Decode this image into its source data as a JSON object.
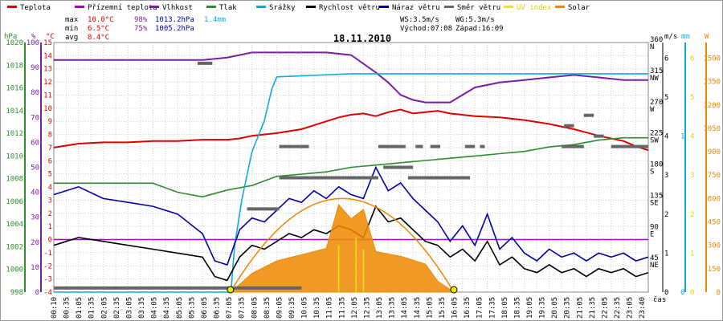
{
  "colors": {
    "teplota": "#dd0000",
    "prizemni": "#aa00cc",
    "vlhkost": "#7a1fa2",
    "tlak": "#2e8b2e",
    "srazky": "#11aadd",
    "rychlost": "#000000",
    "naraz": "#0000aa",
    "smer": "#666666",
    "uv": "#e8e800",
    "solar": "#ee8800",
    "grid": "#cccccc",
    "axis_hpa": "#2e8b2e",
    "axis_pct": "#7a1fa2",
    "axis_c": "#dd0000",
    "axis_ms": "#000000",
    "axis_mm": "#11aadd",
    "axis_w": "#ee8800"
  },
  "legend": [
    {
      "key": "teplota",
      "label": "Teplota"
    },
    {
      "key": "prizemni",
      "label": "Přízemní teplota"
    },
    {
      "key": "vlhkost",
      "label": "Vlhkost"
    },
    {
      "key": "tlak",
      "label": "Tlak"
    },
    {
      "key": "srazky",
      "label": "Srážky"
    },
    {
      "key": "rychlost",
      "label": "Rychlost větru"
    },
    {
      "key": "naraz",
      "label": "Náraz větru"
    },
    {
      "key": "smer",
      "label": "Směr větru"
    },
    {
      "key": "uv",
      "label": "UV index"
    },
    {
      "key": "solar",
      "label": "Solar"
    }
  ],
  "stats": {
    "max_label": "max",
    "max_temp": "10.0°C",
    "max_hum": "98%",
    "max_press": "1013.2hPa",
    "max_rain": "1.4mm",
    "min_label": "min",
    "min_temp": "6.5°C",
    "min_hum": "75%",
    "min_press": "1005.2hPa",
    "avg_label": "avg",
    "avg_temp": "8.4°C"
  },
  "wind_info": {
    "ws": "WS:3.5m/s",
    "wg": "WG:5.3m/s",
    "sunrise": "Východ:07:08",
    "sunset": "Západ:16:09"
  },
  "chart_data": {
    "type": "line",
    "title": "18.11.2010",
    "x_axis_label": "čas",
    "x_range_hours": [
      0,
      24
    ],
    "x_tick_labels": [
      "00:10",
      "00:35",
      "01:05",
      "01:35",
      "02:05",
      "02:35",
      "03:05",
      "03:35",
      "04:05",
      "04:35",
      "05:05",
      "05:35",
      "06:05",
      "06:35",
      "07:05",
      "07:35",
      "08:05",
      "08:35",
      "09:05",
      "09:35",
      "10:05",
      "10:35",
      "11:05",
      "11:35",
      "12:05",
      "12:35",
      "13:05",
      "13:35",
      "14:05",
      "14:35",
      "15:05",
      "15:35",
      "16:05",
      "16:35",
      "17:05",
      "17:35",
      "18:05",
      "18:35",
      "19:05",
      "19:35",
      "20:05",
      "20:35",
      "21:05",
      "21:35",
      "22:05",
      "22:35",
      "23:05",
      "23:40"
    ],
    "axes": {
      "hpa": {
        "unit": "hPa",
        "range": [
          998,
          1020
        ],
        "ticks": [
          998,
          1000,
          1002,
          1004,
          1006,
          1008,
          1010,
          1012,
          1014,
          1016,
          1018,
          1020
        ]
      },
      "pct": {
        "unit": "%",
        "range": [
          0,
          100
        ],
        "ticks": [
          0,
          10,
          20,
          30,
          40,
          50,
          60,
          70,
          80,
          90,
          100
        ]
      },
      "celsius": {
        "unit": "°C",
        "range": [
          -4,
          15
        ],
        "ticks": [
          -4,
          -3,
          -2,
          -1,
          0,
          1,
          2,
          3,
          4,
          5,
          6,
          7,
          8,
          9,
          10,
          11,
          12,
          13,
          14,
          15
        ]
      },
      "wind_dir": {
        "ticks": [
          {
            "deg": 0,
            "label": "0",
            "dir": ""
          },
          {
            "deg": 45,
            "label": "45",
            "dir": "NE"
          },
          {
            "deg": 90,
            "label": "90",
            "dir": "E"
          },
          {
            "deg": 135,
            "label": "135",
            "dir": "SE"
          },
          {
            "deg": 180,
            "label": "180",
            "dir": "S"
          },
          {
            "deg": 225,
            "label": "225",
            "dir": "SW"
          },
          {
            "deg": 270,
            "label": "270",
            "dir": "W"
          },
          {
            "deg": 315,
            "label": "315",
            "dir": "NW"
          },
          {
            "deg": 360,
            "label": "360",
            "dir": "N"
          }
        ]
      },
      "ms": {
        "unit": "m/s",
        "range": [
          0,
          6.4
        ],
        "ticks": [
          0,
          1,
          2,
          3,
          4,
          5,
          6
        ]
      },
      "mm": {
        "unit": "mm",
        "range": [
          0,
          1.6
        ],
        "ticks": [
          0,
          1
        ]
      },
      "uv": {
        "range": [
          0,
          6.4
        ],
        "ticks": [
          0,
          1,
          2,
          3,
          4,
          5,
          6
        ]
      },
      "w": {
        "unit": "W",
        "range": [
          0,
          1600
        ],
        "ticks": [
          0,
          150,
          300,
          450,
          600,
          750,
          900,
          1050,
          1200,
          1350,
          1500
        ]
      }
    },
    "series": [
      {
        "name": "Teplota",
        "axis": "celsius",
        "points": [
          [
            0,
            7.0
          ],
          [
            1,
            7.3
          ],
          [
            2,
            7.4
          ],
          [
            3,
            7.4
          ],
          [
            4,
            7.5
          ],
          [
            5,
            7.5
          ],
          [
            6,
            7.6
          ],
          [
            7,
            7.6
          ],
          [
            7.5,
            7.7
          ],
          [
            8,
            7.9
          ],
          [
            9,
            8.1
          ],
          [
            10,
            8.4
          ],
          [
            11,
            9.0
          ],
          [
            11.5,
            9.3
          ],
          [
            12,
            9.5
          ],
          [
            12.5,
            9.6
          ],
          [
            13,
            9.4
          ],
          [
            13.5,
            9.7
          ],
          [
            14,
            9.9
          ],
          [
            14.5,
            9.6
          ],
          [
            15,
            9.7
          ],
          [
            15.5,
            9.8
          ],
          [
            16,
            9.6
          ],
          [
            17,
            9.4
          ],
          [
            18,
            9.3
          ],
          [
            19,
            9.1
          ],
          [
            20,
            8.8
          ],
          [
            21,
            8.4
          ],
          [
            22,
            7.9
          ],
          [
            23,
            7.5
          ],
          [
            23.5,
            7.1
          ],
          [
            24,
            6.8
          ]
        ]
      },
      {
        "name": "Přízemní teplota",
        "axis": "celsius",
        "points": [
          [
            0,
            0.0
          ],
          [
            24,
            0.0
          ]
        ]
      },
      {
        "name": "Vlhkost",
        "axis": "pct",
        "points": [
          [
            0,
            93
          ],
          [
            3,
            93
          ],
          [
            6,
            93
          ],
          [
            7,
            94
          ],
          [
            8,
            96
          ],
          [
            9,
            96
          ],
          [
            10,
            96
          ],
          [
            11,
            96
          ],
          [
            12,
            95
          ],
          [
            13,
            88
          ],
          [
            13.5,
            84
          ],
          [
            14,
            79
          ],
          [
            14.5,
            77
          ],
          [
            15,
            76
          ],
          [
            16,
            76
          ],
          [
            17,
            82
          ],
          [
            18,
            84
          ],
          [
            19,
            85
          ],
          [
            20,
            86
          ],
          [
            21,
            87
          ],
          [
            22,
            86
          ],
          [
            23,
            85
          ],
          [
            24,
            85
          ]
        ]
      },
      {
        "name": "Tlak",
        "axis": "hpa",
        "points": [
          [
            0,
            1007.6
          ],
          [
            4,
            1007.6
          ],
          [
            5,
            1006.8
          ],
          [
            6,
            1006.4
          ],
          [
            7,
            1007.0
          ],
          [
            8,
            1007.4
          ],
          [
            9,
            1008.2
          ],
          [
            10,
            1008.4
          ],
          [
            11,
            1008.6
          ],
          [
            12,
            1009.0
          ],
          [
            13,
            1009.2
          ],
          [
            14,
            1009.4
          ],
          [
            15,
            1009.6
          ],
          [
            16,
            1009.8
          ],
          [
            17,
            1010.0
          ],
          [
            18,
            1010.2
          ],
          [
            19,
            1010.4
          ],
          [
            20,
            1010.8
          ],
          [
            21,
            1011.0
          ],
          [
            22,
            1011.4
          ],
          [
            23,
            1011.6
          ],
          [
            24,
            1011.6
          ]
        ]
      },
      {
        "name": "Srážky",
        "axis": "mm",
        "points": [
          [
            0,
            0
          ],
          [
            7.15,
            0
          ],
          [
            7.3,
            0.3
          ],
          [
            7.6,
            0.6
          ],
          [
            8.0,
            0.9
          ],
          [
            8.5,
            1.1
          ],
          [
            8.8,
            1.3
          ],
          [
            9.0,
            1.38
          ],
          [
            12,
            1.4
          ],
          [
            24,
            1.4
          ]
        ]
      },
      {
        "name": "Rychlost větru",
        "axis": "ms",
        "points": [
          [
            0,
            1.2
          ],
          [
            1,
            1.4
          ],
          [
            2,
            1.3
          ],
          [
            3,
            1.2
          ],
          [
            4,
            1.1
          ],
          [
            5,
            1.0
          ],
          [
            6,
            0.9
          ],
          [
            6.5,
            0.4
          ],
          [
            7,
            0.3
          ],
          [
            7.5,
            0.9
          ],
          [
            8,
            1.2
          ],
          [
            8.5,
            1.1
          ],
          [
            9,
            1.3
          ],
          [
            9.5,
            1.5
          ],
          [
            10,
            1.4
          ],
          [
            10.5,
            1.6
          ],
          [
            11,
            1.5
          ],
          [
            11.5,
            1.7
          ],
          [
            12,
            1.6
          ],
          [
            12.5,
            1.4
          ],
          [
            13,
            2.2
          ],
          [
            13.5,
            1.8
          ],
          [
            14,
            1.9
          ],
          [
            14.5,
            1.6
          ],
          [
            15,
            1.3
          ],
          [
            15.5,
            1.2
          ],
          [
            16,
            0.9
          ],
          [
            16.5,
            1.1
          ],
          [
            17,
            0.8
          ],
          [
            17.5,
            1.3
          ],
          [
            18,
            0.7
          ],
          [
            18.5,
            0.9
          ],
          [
            19,
            0.6
          ],
          [
            19.5,
            0.5
          ],
          [
            20,
            0.7
          ],
          [
            20.5,
            0.5
          ],
          [
            21,
            0.6
          ],
          [
            21.5,
            0.4
          ],
          [
            22,
            0.6
          ],
          [
            22.5,
            0.5
          ],
          [
            23,
            0.6
          ],
          [
            23.5,
            0.4
          ],
          [
            24,
            0.5
          ]
        ]
      },
      {
        "name": "Náraz větru",
        "axis": "ms",
        "points": [
          [
            0,
            2.5
          ],
          [
            1,
            2.7
          ],
          [
            2,
            2.4
          ],
          [
            3,
            2.3
          ],
          [
            4,
            2.2
          ],
          [
            5,
            2.0
          ],
          [
            6,
            1.5
          ],
          [
            6.5,
            0.8
          ],
          [
            7,
            0.7
          ],
          [
            7.5,
            1.6
          ],
          [
            8,
            1.9
          ],
          [
            8.5,
            1.8
          ],
          [
            9,
            2.1
          ],
          [
            9.5,
            2.4
          ],
          [
            10,
            2.3
          ],
          [
            10.5,
            2.6
          ],
          [
            11,
            2.4
          ],
          [
            11.5,
            2.7
          ],
          [
            12,
            2.5
          ],
          [
            12.5,
            2.4
          ],
          [
            13,
            3.2
          ],
          [
            13.5,
            2.6
          ],
          [
            14,
            2.8
          ],
          [
            14.5,
            2.4
          ],
          [
            15,
            2.1
          ],
          [
            15.5,
            1.8
          ],
          [
            16,
            1.3
          ],
          [
            16.5,
            1.7
          ],
          [
            17,
            1.2
          ],
          [
            17.5,
            2.0
          ],
          [
            18,
            1.1
          ],
          [
            18.5,
            1.4
          ],
          [
            19,
            1.0
          ],
          [
            19.5,
            0.8
          ],
          [
            20,
            1.1
          ],
          [
            20.5,
            0.9
          ],
          [
            21,
            1.0
          ],
          [
            21.5,
            0.8
          ],
          [
            22,
            1.0
          ],
          [
            22.5,
            0.9
          ],
          [
            23,
            1.0
          ],
          [
            23.5,
            0.8
          ],
          [
            24,
            0.9
          ]
        ]
      },
      {
        "name": "Solar",
        "axis": "w",
        "points": [
          [
            7.15,
            0
          ],
          [
            8,
            120
          ],
          [
            9,
            200
          ],
          [
            10,
            240
          ],
          [
            11,
            280
          ],
          [
            11.5,
            560
          ],
          [
            12,
            470
          ],
          [
            12.5,
            530
          ],
          [
            13,
            260
          ],
          [
            14,
            230
          ],
          [
            15,
            180
          ],
          [
            15.5,
            70
          ],
          [
            16.15,
            0
          ]
        ]
      }
    ],
    "wind_direction_segments_deg": [
      [
        0,
        10.0,
        5.9
      ],
      [
        5.8,
        6.4,
        330
      ],
      [
        7.8,
        9.1,
        120
      ],
      [
        9.1,
        10.2,
        165
      ],
      [
        10.2,
        13.1,
        165
      ],
      [
        13.3,
        14.5,
        180
      ],
      [
        14.3,
        16.8,
        165
      ],
      [
        9.1,
        10.3,
        210
      ],
      [
        13.1,
        14.2,
        210
      ],
      [
        14.6,
        14.9,
        210
      ],
      [
        15.2,
        15.6,
        210
      ],
      [
        16.6,
        17.0,
        210
      ],
      [
        17.2,
        17.4,
        210
      ],
      [
        20.5,
        21.4,
        210
      ],
      [
        21.8,
        22.2,
        225
      ],
      [
        22.5,
        24,
        210
      ],
      [
        20.6,
        21.0,
        240
      ],
      [
        21.4,
        21.8,
        255
      ]
    ],
    "sun_markers_hours": [
      7.13,
      16.15
    ]
  }
}
